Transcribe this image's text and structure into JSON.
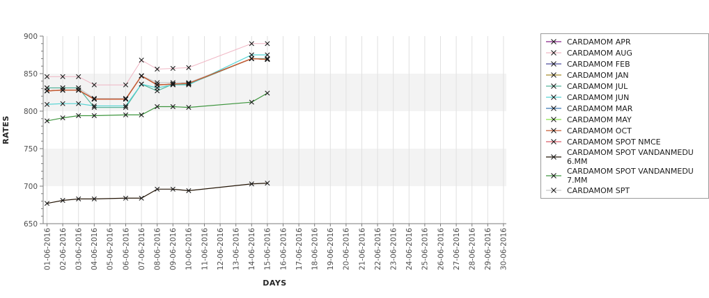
{
  "window": {
    "background": "#ffffff"
  },
  "chart_data": {
    "type": "line",
    "title": "",
    "xlabel": "DAYS",
    "ylabel": "RATES",
    "ylim": [
      650,
      900
    ],
    "y_major_ticks": [
      650,
      700,
      750,
      800,
      850,
      900
    ],
    "y_minor_step": 10,
    "grid": "vertical",
    "shaded_bands": [
      [
        800,
        850
      ],
      [
        700,
        750
      ]
    ],
    "band_color": "#f3f3f3",
    "gridline_color": "#e0e0e0",
    "axis_color": "#7a7a7a",
    "tick_label_color": "#4d4d4d",
    "marker": "x",
    "marker_color": "#1a1a1a",
    "x_categories": [
      "01-06-2016",
      "02-06-2016",
      "03-06-2016",
      "04-06-2016",
      "05-06-2016",
      "06-06-2016",
      "07-06-2016",
      "08-06-2016",
      "09-06-2016",
      "10-06-2016",
      "11-06-2016",
      "12-06-2016",
      "13-06-2016",
      "14-06-2016",
      "15-06-2016",
      "16-06-2016",
      "17-06-2016",
      "18-06-2016",
      "19-06-2016",
      "20-06-2016",
      "21-06-2016",
      "22-06-2016",
      "23-06-2016",
      "24-06-2016",
      "25-06-2016",
      "26-06-2016",
      "27-06-2016",
      "28-06-2016",
      "29-06-2016",
      "30-06-2016"
    ],
    "data_day_indices": [
      0,
      1,
      2,
      3,
      5,
      6,
      7,
      8,
      9,
      13,
      14
    ],
    "series": [
      {
        "name": "CARDAMOM APR",
        "color": "#882288",
        "width": 1.1,
        "values": [
          827,
          828,
          828,
          816,
          816,
          847,
          835,
          836,
          837,
          870,
          869
        ]
      },
      {
        "name": "CARDAMOM FEB",
        "color": "#4C4C9C",
        "width": 1.1,
        "values": [
          827,
          828,
          828,
          816,
          816,
          847,
          835,
          836,
          837,
          870,
          869
        ]
      },
      {
        "name": "CARDAMOM JAN",
        "color": "#A68C2A",
        "width": 1.1,
        "values": [
          827,
          828,
          828,
          816,
          816,
          847,
          835,
          836,
          837,
          870,
          869
        ]
      },
      {
        "name": "CARDAMOM MAR",
        "color": "#3B77B5",
        "width": 1.1,
        "values": [
          827,
          828,
          828,
          816,
          816,
          847,
          835,
          836,
          837,
          870,
          869
        ]
      },
      {
        "name": "CARDAMOM MAY",
        "color": "#88E048",
        "width": 1.1,
        "values": [
          827,
          828,
          828,
          816,
          816,
          847,
          835,
          836,
          837,
          870,
          869
        ]
      },
      {
        "name": "CARDAMOM SPOT NMCE",
        "color": "#DB5A66",
        "width": 1.1,
        "values": [
          827,
          828,
          828,
          816,
          816,
          847,
          835,
          836,
          837,
          870,
          869
        ]
      },
      {
        "name": "CARDAMOM SPT",
        "color": "#C6C6C6",
        "width": 1.1,
        "values": [
          831,
          831,
          831,
          817,
          817,
          847,
          838,
          838,
          838,
          870,
          870
        ]
      },
      {
        "name": "CARDAMOM AUG",
        "color": "#F0B6C4",
        "width": 1.0,
        "values": [
          846,
          846,
          846,
          835,
          835,
          868,
          856,
          857,
          858,
          890,
          890
        ]
      },
      {
        "name": "CARDAMOM JUL",
        "color": "#55B39A",
        "width": 1.2,
        "values": [
          831,
          831,
          831,
          805,
          805,
          836,
          827,
          836,
          836,
          870,
          870
        ]
      },
      {
        "name": "CARDAMOM JUN",
        "color": "#55D4D4",
        "width": 1.2,
        "values": [
          809,
          810,
          810,
          807,
          807,
          836,
          831,
          835,
          835,
          875,
          875
        ]
      },
      {
        "name": "CARDAMOM OCT",
        "color": "#C75B33",
        "width": 1.5,
        "values": [
          827,
          828,
          828,
          816,
          816,
          847,
          835,
          836,
          837,
          870,
          869
        ]
      },
      {
        "name": "CARDAMOM SPOT VANDANMEDU 7.MM",
        "color": "#3D953D",
        "width": 1.2,
        "values": [
          787,
          791,
          794,
          794,
          795,
          795,
          806,
          806,
          805,
          812,
          824
        ]
      },
      {
        "name": "CARDAMOM SPOT VANDANMEDU 6.MM",
        "color": "#221304",
        "width": 1.2,
        "values": [
          677,
          681,
          683,
          683,
          684,
          684,
          696,
          696,
          694,
          703,
          704
        ]
      }
    ],
    "legend_position": "right"
  },
  "legend": {
    "items": [
      {
        "lines": [
          "CARDAMOM APR"
        ],
        "color": "#882288"
      },
      {
        "lines": [
          "CARDAMOM AUG"
        ],
        "color": "#F0B6C4"
      },
      {
        "lines": [
          "CARDAMOM FEB"
        ],
        "color": "#4C4C9C"
      },
      {
        "lines": [
          "CARDAMOM JAN"
        ],
        "color": "#A68C2A"
      },
      {
        "lines": [
          "CARDAMOM JUL"
        ],
        "color": "#55B39A"
      },
      {
        "lines": [
          "CARDAMOM JUN"
        ],
        "color": "#55D4D4"
      },
      {
        "lines": [
          "CARDAMOM MAR"
        ],
        "color": "#3B77B5"
      },
      {
        "lines": [
          "CARDAMOM MAY"
        ],
        "color": "#88E048"
      },
      {
        "lines": [
          "CARDAMOM OCT"
        ],
        "color": "#C75B33"
      },
      {
        "lines": [
          "CARDAMOM SPOT NMCE"
        ],
        "color": "#DB5A66"
      },
      {
        "lines": [
          "CARDAMOM SPOT VANDANMEDU",
          "6.MM"
        ],
        "color": "#221304"
      },
      {
        "lines": [
          "CARDAMOM SPOT VANDANMEDU",
          "7.MM"
        ],
        "color": "#3D953D"
      },
      {
        "lines": [
          "CARDAMOM SPT"
        ],
        "color": "#C6C6C6"
      }
    ]
  }
}
